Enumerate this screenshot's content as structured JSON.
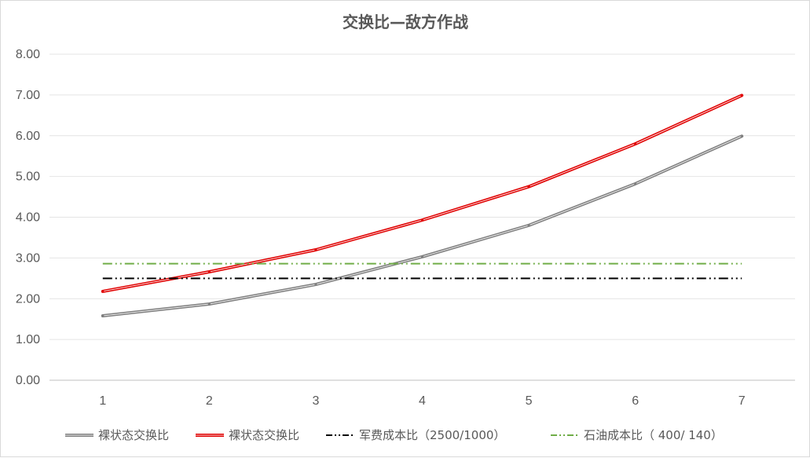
{
  "chart_data": {
    "type": "line",
    "title": "交换比—敌方作战",
    "xlabel": "",
    "ylabel": "",
    "x": [
      "1",
      "2",
      "3",
      "4",
      "5",
      "6",
      "7"
    ],
    "ylim": [
      0,
      8
    ],
    "yticks": [
      "0.00",
      "1.00",
      "2.00",
      "3.00",
      "4.00",
      "5.00",
      "6.00",
      "7.00",
      "8.00"
    ],
    "grid": "horizontal",
    "legend_position": "bottom",
    "series": [
      {
        "name": "裸状态交换比",
        "color": "#7f7f7f",
        "style": "double-solid",
        "values": [
          1.58,
          1.87,
          2.35,
          3.03,
          3.8,
          4.82,
          5.99
        ]
      },
      {
        "name": "裸状态交换比",
        "color": "#e00000",
        "style": "double-solid",
        "values": [
          2.18,
          2.66,
          3.2,
          3.93,
          4.75,
          5.8,
          6.99
        ]
      },
      {
        "name": "军费成本比（2500/1000）",
        "color": "#000000",
        "style": "dash-dot-dot",
        "values": [
          2.5,
          2.5,
          2.5,
          2.5,
          2.5,
          2.5,
          2.5
        ]
      },
      {
        "name": "石油成本比（ 400/ 140）",
        "color": "#70ad47",
        "style": "dash-dot-dot",
        "values": [
          2.86,
          2.86,
          2.86,
          2.86,
          2.86,
          2.86,
          2.86
        ]
      }
    ]
  }
}
